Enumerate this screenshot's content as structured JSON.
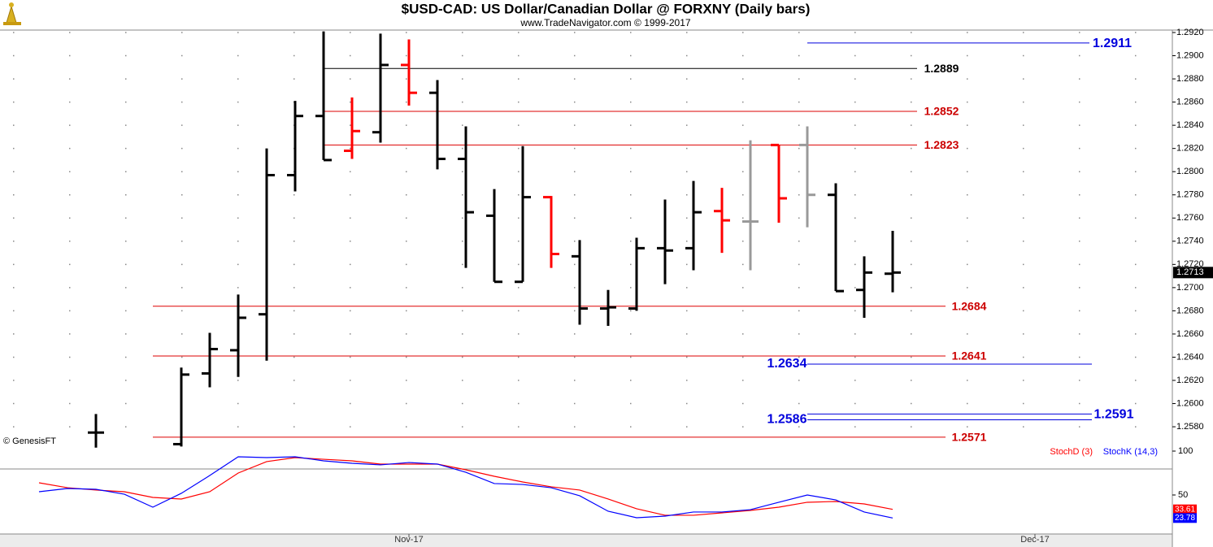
{
  "chart_data": [
    {
      "type": "ohlc",
      "title": "$USD-CAD:  US Dollar/Canadian Dollar @ FORXNY  (Daily bars)",
      "subtitle": "www.TradeNavigator.com © 1999-2017",
      "source": "© GenesisFT",
      "x": [
        0,
        1,
        2,
        3,
        4,
        5,
        6,
        7,
        8,
        9,
        10,
        11,
        12,
        13,
        14,
        15,
        16,
        17,
        18,
        19,
        20,
        21,
        22,
        23,
        24,
        25,
        26,
        27,
        28,
        29,
        30
      ],
      "xlim": [
        -1.3714,
        39.8286
      ],
      "xticks": [
        {
          "value": 13,
          "label": "Nov-17"
        },
        {
          "value": 35,
          "label": "Dec-17"
        }
      ],
      "ylim": [
        1.25436,
        1.29221
      ],
      "yticks": [
        {
          "value": 1.258,
          "label": "1.2580"
        },
        {
          "value": 1.26,
          "label": "1.2600"
        },
        {
          "value": 1.262,
          "label": "1.2620"
        },
        {
          "value": 1.264,
          "label": "1.2640"
        },
        {
          "value": 1.266,
          "label": "1.2660"
        },
        {
          "value": 1.268,
          "label": "1.2680"
        },
        {
          "value": 1.27,
          "label": "1.2700"
        },
        {
          "value": 1.272,
          "label": "1.2720"
        },
        {
          "value": 1.274,
          "label": "1.2740"
        },
        {
          "value": 1.276,
          "label": "1.2760"
        },
        {
          "value": 1.278,
          "label": "1.2780"
        },
        {
          "value": 1.28,
          "label": "1.2800"
        },
        {
          "value": 1.282,
          "label": "1.2820"
        },
        {
          "value": 1.284,
          "label": "1.2840"
        },
        {
          "value": 1.286,
          "label": "1.2860"
        },
        {
          "value": 1.288,
          "label": "1.2880"
        },
        {
          "value": 1.29,
          "label": "1.2900"
        },
        {
          "value": 1.292,
          "label": "1.2920"
        }
      ],
      "grid": true,
      "open": [
        null,
        null,
        1.2575,
        null,
        null,
        1.2565,
        1.2626,
        1.2646,
        1.2677,
        1.2797,
        1.2848,
        1.2818,
        1.2834,
        1.2892,
        1.2868,
        1.2811,
        1.2762,
        1.2705,
        1.2778,
        1.2727,
        1.2682,
        1.2682,
        1.2734,
        1.2734,
        1.2766,
        1.2757,
        1.2823,
        1.2823,
        1.278,
        1.2698,
        1.2712
      ],
      "high": [
        null,
        null,
        1.2591,
        null,
        null,
        1.2631,
        1.2661,
        1.2694,
        1.282,
        1.2861,
        1.2921,
        1.2864,
        1.2919,
        1.2914,
        1.2879,
        1.2839,
        1.2785,
        1.2822,
        1.2779,
        1.2741,
        1.2698,
        1.2743,
        1.2776,
        1.2792,
        1.2786,
        1.2827,
        1.2823,
        1.2839,
        1.279,
        1.2727,
        1.2749
      ],
      "low": [
        null,
        null,
        1.2562,
        null,
        null,
        1.2563,
        1.2614,
        1.2623,
        1.2637,
        1.2783,
        1.281,
        1.2811,
        1.2825,
        1.2857,
        1.2802,
        1.2717,
        1.2705,
        1.2705,
        1.2717,
        1.2668,
        1.2667,
        1.268,
        1.2703,
        1.2715,
        1.273,
        1.2715,
        1.2756,
        1.2752,
        1.2697,
        1.2674,
        1.2696
      ],
      "close": [
        null,
        null,
        1.2575,
        null,
        null,
        1.2625,
        1.2647,
        1.2674,
        1.2797,
        1.2848,
        1.281,
        1.2835,
        1.2892,
        1.2868,
        1.2811,
        1.2765,
        1.2705,
        1.2778,
        1.2729,
        1.2682,
        1.2683,
        1.2734,
        1.2732,
        1.2765,
        1.2758,
        1.2757,
        1.2777,
        1.278,
        1.2697,
        1.2713,
        1.2713
      ],
      "colors": [
        null,
        null,
        "#000000",
        null,
        null,
        "#000000",
        "#000000",
        "#000000",
        "#000000",
        "#000000",
        "#000000",
        "#ff0000",
        "#000000",
        "#ff0000",
        "#000000",
        "#000000",
        "#000000",
        "#000000",
        "#ff0000",
        "#000000",
        "#000000",
        "#000000",
        "#000000",
        "#000000",
        "#ff0000",
        "#999999",
        "#ff0000",
        "#999999",
        "#000000",
        "#000000",
        "#000000"
      ],
      "levels": [
        {
          "value": 1.2911,
          "color": "#0000dd"
        },
        {
          "value": 1.2889,
          "color": "#000000"
        },
        {
          "value": 1.2852,
          "color": "#dd0000"
        },
        {
          "value": 1.2823,
          "color": "#dd0000"
        },
        {
          "value": 1.2684,
          "color": "#dd0000"
        },
        {
          "value": 1.2641,
          "color": "#dd0000"
        },
        {
          "value": 1.2634,
          "color": "#0000dd"
        },
        {
          "value": 1.2591,
          "color": "#0000dd"
        },
        {
          "value": 1.2586,
          "color": "#0000dd"
        },
        {
          "value": 1.2571,
          "color": "#dd0000"
        }
      ]
    },
    {
      "type": "line",
      "x": [
        0,
        1,
        2,
        3,
        4,
        5,
        6,
        7,
        8,
        9,
        10,
        11,
        12,
        13,
        14,
        15,
        16,
        17,
        18,
        19,
        20,
        21,
        22,
        23,
        24,
        25,
        26,
        27,
        28,
        29,
        30
      ],
      "ylim": [
        0,
        100
      ],
      "yticks": [
        50,
        100
      ],
      "series": [
        {
          "name": "StochD (3)",
          "color": "#ff0000",
          "values": [
            63.9,
            58.3,
            55.6,
            53.7,
            47.2,
            45.4,
            53.7,
            75.0,
            88.0,
            92.6,
            90.7,
            88.9,
            85.2,
            85.2,
            85.2,
            78.7,
            71.3,
            64.8,
            59.3,
            55.6,
            45.4,
            34.3,
            26.9,
            26.9,
            29.6,
            32.4,
            36.1,
            41.7,
            42.6,
            39.8,
            33.61
          ]
        },
        {
          "name": "StochK (14,3)",
          "color": "#0000ff",
          "values": [
            53.7,
            57.4,
            56.5,
            50.9,
            36.1,
            51.9,
            72.2,
            93.5,
            92.6,
            93.5,
            88.9,
            86.1,
            84.3,
            87.0,
            85.2,
            75.9,
            63.0,
            62.0,
            58.3,
            49.1,
            31.5,
            24.1,
            25.9,
            30.6,
            30.6,
            33.3,
            41.7,
            50.0,
            44.4,
            30.6,
            23.78
          ]
        }
      ]
    }
  ]
}
